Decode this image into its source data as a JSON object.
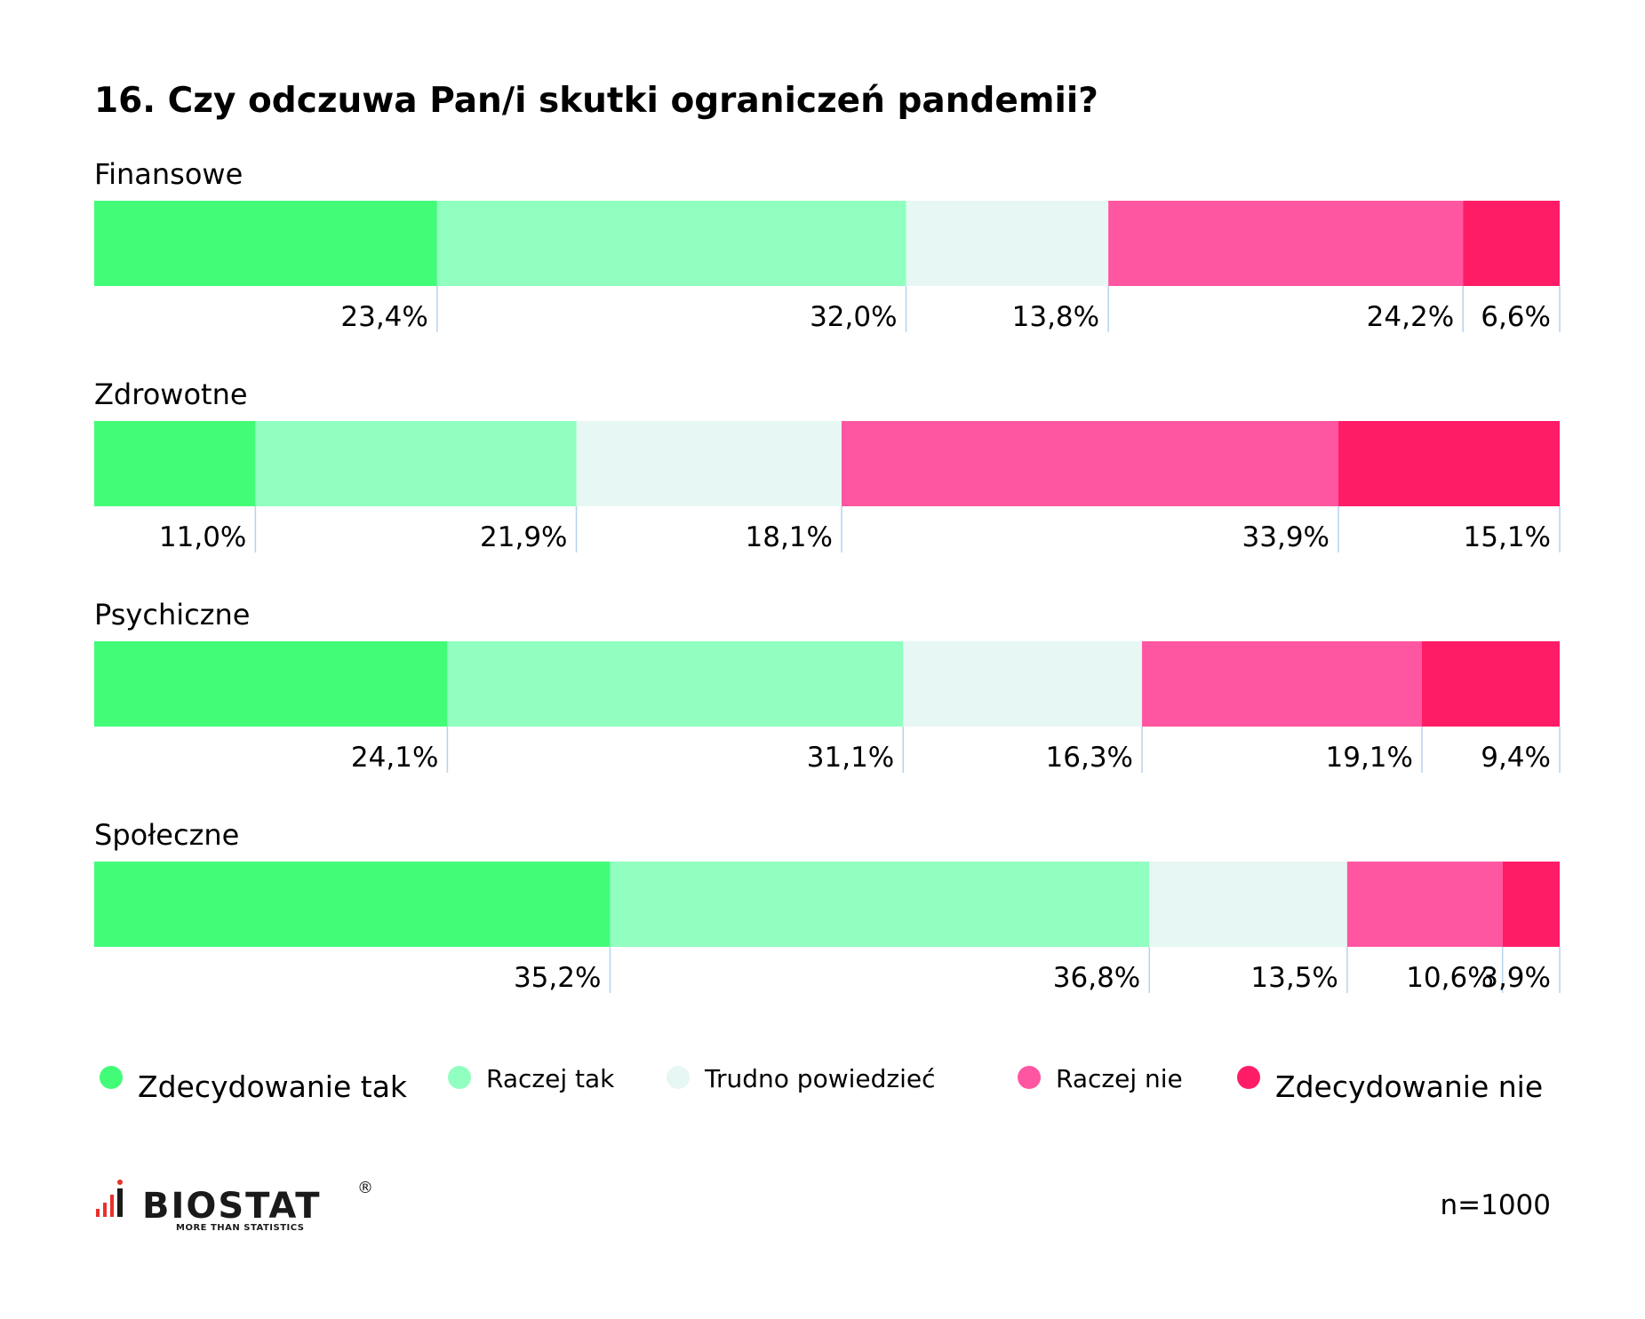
{
  "chart_data": {
    "type": "bar",
    "orientation": "horizontal",
    "stacked": true,
    "title": "16. Czy odczuwa Pan/i skutki ograniczeń pandemii?",
    "categories": [
      "Finansowe",
      "Zdrowotne",
      "Psychiczne",
      "Społeczne"
    ],
    "series": [
      {
        "name": "Zdecydowanie tak",
        "color": "#42FC78",
        "values": [
          23.4,
          11.0,
          24.1,
          35.2
        ]
      },
      {
        "name": "Raczej tak",
        "color": "#90FFC0",
        "values": [
          32.0,
          21.9,
          31.1,
          36.8
        ]
      },
      {
        "name": "Trudno powiedzieć",
        "color": "#E7F7F3",
        "values": [
          13.8,
          18.1,
          16.3,
          13.5
        ]
      },
      {
        "name": "Raczej nie",
        "color": "#FF56A1",
        "values": [
          24.2,
          33.9,
          19.1,
          10.6
        ]
      },
      {
        "name": "Zdecydowanie nie",
        "color": "#FF1C66",
        "values": [
          6.6,
          15.1,
          9.4,
          3.9
        ]
      }
    ],
    "value_labels": [
      [
        "23,4%",
        "32,0%",
        "13,8%",
        "24,2%",
        "6,6%"
      ],
      [
        "11,0%",
        "21,9%",
        "18,1%",
        "33,9%",
        "15,1%"
      ],
      [
        "24,1%",
        "31,1%",
        "16,3%",
        "19,1%",
        "9,4%"
      ],
      [
        "35,2%",
        "36,8%",
        "13,5%",
        "10,6%",
        "3,9%"
      ]
    ],
    "legend_position": "bottom",
    "xlim": [
      0,
      100
    ],
    "grid": false
  },
  "footer": {
    "n_label": "n=1000",
    "logo_text": "BIOSTAT",
    "logo_tagline": "MORE THAN STATISTICS",
    "logo_reg": "®",
    "logo_color": "#1a1a1a",
    "logo_accent": "#e8302d"
  }
}
